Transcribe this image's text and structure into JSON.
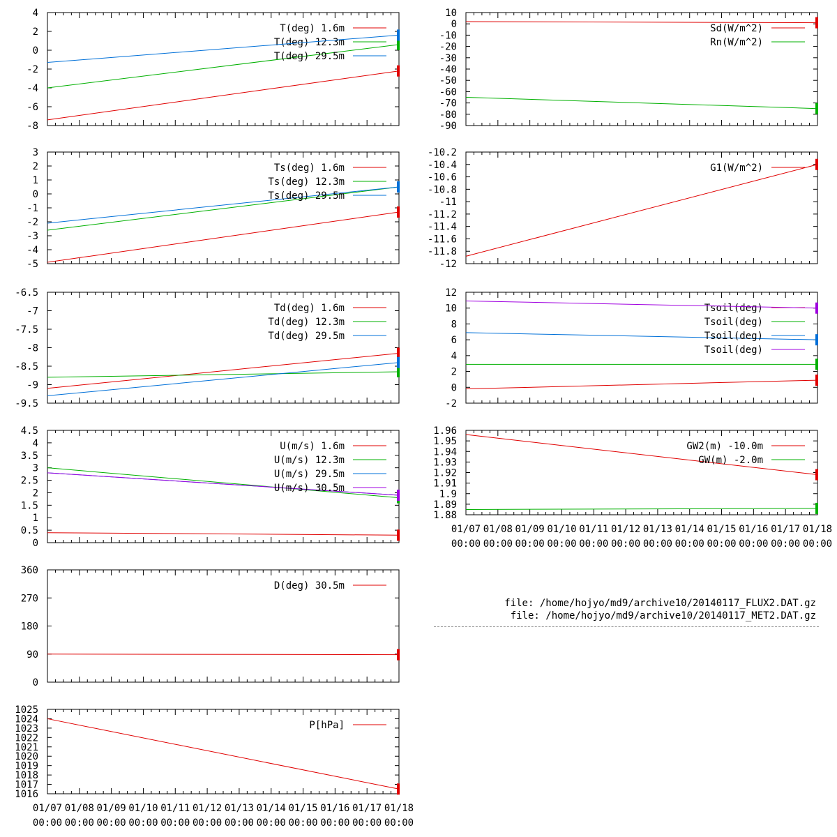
{
  "colors": {
    "red": "#e00000",
    "green": "#00b000",
    "blue": "#0070d8",
    "purple": "#a000e0",
    "axis": "#000000"
  },
  "time_axis": {
    "date_ticks": [
      "01/07",
      "01/08",
      "01/09",
      "01/10",
      "01/11",
      "01/12",
      "01/13",
      "01/14",
      "01/15",
      "01/16",
      "01/17",
      "01/18"
    ],
    "time_ticks": [
      "00:00",
      "00:00",
      "00:00",
      "00:00",
      "00:00",
      "00:00",
      "00:00",
      "00:00",
      "00:00",
      "00:00",
      "00:00",
      "00:00"
    ]
  },
  "files": [
    "file: /home/hojyo/md9/archive10/20140117_FLUX2.DAT.gz",
    "file: /home/hojyo/md9/archive10/20140117_MET2.DAT.gz"
  ],
  "chart_data": [
    {
      "type": "line",
      "ylim": [
        -8,
        4
      ],
      "yticks": [
        "4",
        "2",
        "0",
        "-2",
        "-4",
        "-6",
        "-8"
      ],
      "x_labels": false,
      "series": [
        {
          "name": "T(deg)  1.6m",
          "color": "red",
          "x": [
            0,
            11
          ],
          "values": [
            -7.4,
            -2.2
          ]
        },
        {
          "name": "T(deg) 12.3m",
          "color": "green",
          "x": [
            0,
            11
          ],
          "values": [
            -4.0,
            0.6
          ]
        },
        {
          "name": "T(deg) 29.5m",
          "color": "blue",
          "x": [
            0,
            11
          ],
          "values": [
            -1.3,
            1.6
          ]
        }
      ]
    },
    {
      "type": "line",
      "ylim": [
        -5,
        3
      ],
      "yticks": [
        "3",
        "2",
        "1",
        "0",
        "-1",
        "-2",
        "-3",
        "-4",
        "-5"
      ],
      "x_labels": false,
      "series": [
        {
          "name": "Ts(deg)  1.6m",
          "color": "red",
          "x": [
            0,
            11
          ],
          "values": [
            -4.9,
            -1.3
          ]
        },
        {
          "name": "Ts(deg) 12.3m",
          "color": "green",
          "x": [
            0,
            11
          ],
          "values": [
            -2.6,
            0.5
          ]
        },
        {
          "name": "Ts(deg) 29.5m",
          "color": "blue",
          "x": [
            0,
            11
          ],
          "values": [
            -2.1,
            0.5
          ]
        }
      ]
    },
    {
      "type": "line",
      "ylim": [
        -9.5,
        -6.5
      ],
      "yticks": [
        "-6.5",
        "-7",
        "-7.5",
        "-8",
        "-8.5",
        "-9",
        "-9.5"
      ],
      "x_labels": false,
      "series": [
        {
          "name": "Td(deg)  1.6m",
          "color": "red",
          "x": [
            0,
            11
          ],
          "values": [
            -9.1,
            -8.15
          ]
        },
        {
          "name": "Td(deg) 12.3m",
          "color": "green",
          "x": [
            0,
            11
          ],
          "values": [
            -8.8,
            -8.65
          ]
        },
        {
          "name": "Td(deg) 29.5m",
          "color": "blue",
          "x": [
            0,
            11
          ],
          "values": [
            -9.3,
            -8.4
          ]
        }
      ]
    },
    {
      "type": "line",
      "ylim": [
        0,
        4.5
      ],
      "yticks": [
        "4.5",
        "4",
        "3.5",
        "3",
        "2.5",
        "2",
        "1.5",
        "1",
        "0.5",
        "0"
      ],
      "x_labels": false,
      "series": [
        {
          "name": "U(m/s)  1.6m",
          "color": "red",
          "x": [
            0,
            11
          ],
          "values": [
            0.4,
            0.3
          ]
        },
        {
          "name": "U(m/s) 12.3m",
          "color": "green",
          "x": [
            0,
            11
          ],
          "values": [
            3.0,
            1.8
          ]
        },
        {
          "name": "U(m/s) 29.5m",
          "color": "blue",
          "x": [
            0,
            11
          ],
          "values": [
            2.8,
            1.9
          ]
        },
        {
          "name": "U(m/s) 30.5m",
          "color": "purple",
          "x": [
            0,
            11
          ],
          "values": [
            2.8,
            1.9
          ]
        }
      ]
    },
    {
      "type": "line",
      "ylim": [
        0,
        360
      ],
      "yticks": [
        "360",
        "270",
        "180",
        "90",
        "0"
      ],
      "x_labels": false,
      "series": [
        {
          "name": "D(deg)  30.5m",
          "color": "red",
          "x": [
            0,
            11
          ],
          "values": [
            90,
            88
          ]
        }
      ]
    },
    {
      "type": "line",
      "ylim": [
        1016,
        1025
      ],
      "yticks": [
        "1025",
        "1024",
        "1023",
        "1022",
        "1021",
        "1020",
        "1019",
        "1018",
        "1017",
        "1016"
      ],
      "x_labels": true,
      "series": [
        {
          "name": "P[hPa]",
          "color": "red",
          "x": [
            0,
            11
          ],
          "values": [
            1024,
            1016.5
          ]
        }
      ]
    },
    {
      "type": "line",
      "ylim": [
        -90,
        10
      ],
      "yticks": [
        "10",
        "0",
        "-10",
        "-20",
        "-30",
        "-40",
        "-50",
        "-60",
        "-70",
        "-80",
        "-90"
      ],
      "x_labels": false,
      "series": [
        {
          "name": "Sd(W/m^2)",
          "color": "red",
          "x": [
            0,
            11
          ],
          "values": [
            2,
            1
          ]
        },
        {
          "name": "Rn(W/m^2)",
          "color": "green",
          "x": [
            0,
            11
          ],
          "values": [
            -65,
            -75
          ]
        }
      ]
    },
    {
      "type": "line",
      "ylim": [
        -12,
        -10.2
      ],
      "yticks": [
        "-10.2",
        "-10.4",
        "-10.6",
        "-10.8",
        "-11",
        "-11.2",
        "-11.4",
        "-11.6",
        "-11.8",
        "-12"
      ],
      "x_labels": false,
      "series": [
        {
          "name": "G1(W/m^2)",
          "color": "red",
          "x": [
            0,
            11
          ],
          "values": [
            -11.88,
            -10.4
          ]
        }
      ]
    },
    {
      "type": "line",
      "ylim": [
        -2,
        12
      ],
      "yticks": [
        "12",
        "10",
        "8",
        "6",
        "4",
        "2",
        "0",
        "-2"
      ],
      "x_labels": false,
      "series": [
        {
          "name": "Tsoil(deg)",
          "color": "red",
          "x": [
            0,
            11
          ],
          "values": [
            -0.2,
            0.9
          ]
        },
        {
          "name": "Tsoil(deg)",
          "color": "green",
          "x": [
            0,
            11
          ],
          "values": [
            2.9,
            2.9
          ]
        },
        {
          "name": "Tsoil(deg)",
          "color": "blue",
          "x": [
            0,
            11
          ],
          "values": [
            6.9,
            6.0
          ]
        },
        {
          "name": "Tsoil(deg)",
          "color": "purple",
          "x": [
            0,
            11
          ],
          "values": [
            10.9,
            10.0
          ]
        }
      ]
    },
    {
      "type": "line",
      "ylim": [
        1.88,
        1.96
      ],
      "yticks": [
        "1.96",
        "1.95",
        "1.94",
        "1.93",
        "1.92",
        "1.91",
        "1.9",
        "1.89",
        "1.88"
      ],
      "x_labels": true,
      "series": [
        {
          "name": "GW2(m) -10.0m",
          "color": "red",
          "x": [
            0,
            11
          ],
          "values": [
            1.956,
            1.918
          ]
        },
        {
          "name": "GW(m)  -2.0m",
          "color": "green",
          "x": [
            0,
            11
          ],
          "values": [
            1.885,
            1.886
          ]
        }
      ]
    }
  ]
}
